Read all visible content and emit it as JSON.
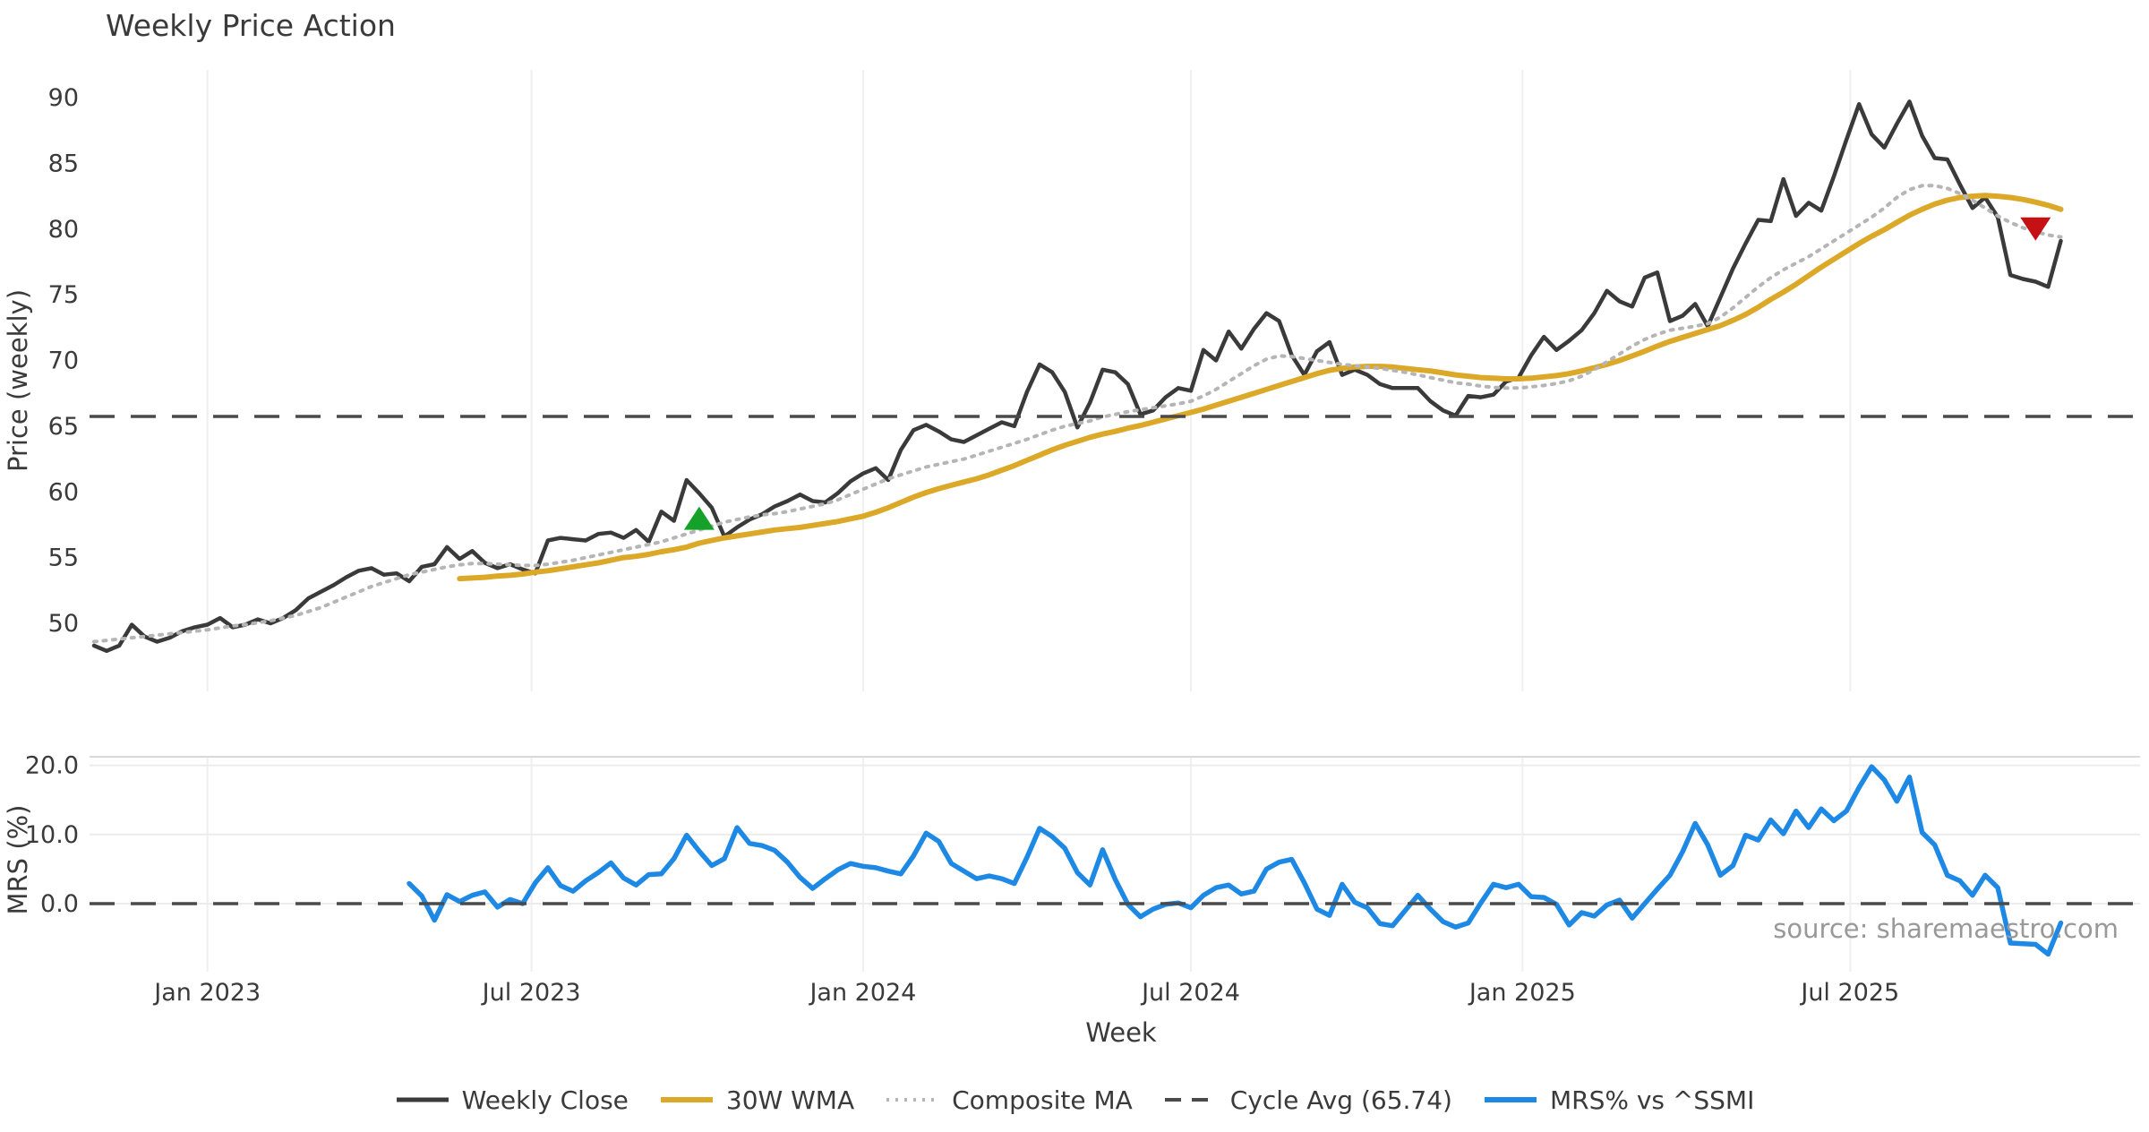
{
  "title": "Weekly Price Action",
  "source_text": "source: sharemaestro.com",
  "legend": {
    "items": [
      {
        "label": "Weekly Close",
        "color": "#3a3a3a",
        "style": "solid",
        "thickness": 5
      },
      {
        "label": "30W WMA",
        "color": "#dba828",
        "style": "solid",
        "thickness": 6
      },
      {
        "label": "Composite MA",
        "color": "#b5b5b5",
        "style": "dotted",
        "thickness": 4
      },
      {
        "label": "Cycle Avg (65.74)",
        "color": "#4a4a4a",
        "style": "dashed",
        "thickness": 4
      },
      {
        "label": "MRS% vs ^SSMI",
        "color": "#1e88e5",
        "style": "solid",
        "thickness": 6
      }
    ]
  },
  "chart_data": [
    {
      "type": "line",
      "panel": "price",
      "title": "Weekly Price Action",
      "xlabel": "Week",
      "ylabel": "Price (weekly)",
      "x_unit": "weekly index starting 2022-10-31",
      "n_points": 157,
      "ylim": [
        44.8,
        92.2
      ],
      "yticks": [
        50,
        55,
        60,
        65,
        70,
        75,
        80,
        85,
        90
      ],
      "x_ticks": [
        {
          "index": 9.0,
          "label": "Jan 2023"
        },
        {
          "index": 34.7,
          "label": "Jul 2023"
        },
        {
          "index": 61.0,
          "label": "Jan 2024"
        },
        {
          "index": 87.0,
          "label": "Jul 2024"
        },
        {
          "index": 113.3,
          "label": "Jan 2025"
        },
        {
          "index": 139.3,
          "label": "Jul 2025"
        }
      ],
      "grid": "vertical-only",
      "series": [
        {
          "name": "Weekly Close",
          "color": "#3a3a3a",
          "style": "solid",
          "width": 4.5,
          "start_index": 0,
          "values": [
            48.3,
            47.9,
            48.3,
            49.9,
            49.0,
            48.6,
            48.9,
            49.4,
            49.7,
            49.9,
            50.4,
            49.7,
            49.9,
            50.3,
            50.0,
            50.4,
            51.0,
            51.9,
            52.4,
            52.9,
            53.5,
            54.0,
            54.2,
            53.7,
            53.8,
            53.2,
            54.3,
            54.5,
            55.8,
            54.9,
            55.5,
            54.6,
            54.2,
            54.5,
            54.1,
            53.8,
            56.3,
            56.5,
            56.4,
            56.3,
            56.8,
            56.9,
            56.5,
            57.1,
            56.2,
            58.5,
            57.8,
            60.9,
            59.9,
            58.8,
            56.6,
            57.3,
            57.9,
            58.3,
            58.9,
            59.3,
            59.8,
            59.3,
            59.2,
            59.9,
            60.8,
            61.4,
            61.8,
            60.9,
            63.2,
            64.7,
            65.1,
            64.6,
            64.0,
            63.8,
            64.3,
            64.8,
            65.3,
            65.0,
            67.6,
            69.7,
            69.1,
            67.6,
            64.9,
            66.8,
            69.3,
            69.1,
            68.2,
            65.9,
            66.2,
            67.2,
            67.9,
            67.7,
            70.8,
            70.0,
            72.2,
            70.9,
            72.4,
            73.6,
            73.0,
            70.4,
            68.9,
            70.7,
            71.4,
            68.9,
            69.3,
            68.9,
            68.2,
            67.9,
            67.9,
            67.9,
            66.9,
            66.2,
            65.8,
            67.3,
            67.2,
            67.4,
            68.4,
            68.7,
            70.4,
            71.8,
            70.8,
            71.5,
            72.3,
            73.6,
            75.3,
            74.5,
            74.1,
            76.3,
            76.7,
            73.0,
            73.4,
            74.3,
            72.6,
            74.8,
            77.0,
            78.9,
            80.7,
            80.6,
            83.8,
            81.0,
            82.0,
            81.4,
            84.0,
            86.8,
            89.5,
            87.2,
            86.2,
            88.0,
            89.7,
            87.1,
            85.4,
            85.3,
            83.4,
            81.6,
            82.4,
            80.9,
            76.5,
            76.2,
            76.0,
            75.6,
            79.1
          ]
        },
        {
          "name": "30W WMA",
          "color": "#dba828",
          "style": "solid",
          "width": 6,
          "start_index": 29,
          "values": [
            53.4,
            53.45,
            53.5,
            53.6,
            53.65,
            53.75,
            53.9,
            54.0,
            54.15,
            54.3,
            54.45,
            54.6,
            54.8,
            55.0,
            55.1,
            55.25,
            55.45,
            55.6,
            55.8,
            56.1,
            56.3,
            56.5,
            56.65,
            56.8,
            56.95,
            57.1,
            57.2,
            57.3,
            57.45,
            57.6,
            57.75,
            57.95,
            58.15,
            58.45,
            58.8,
            59.2,
            59.6,
            59.95,
            60.25,
            60.5,
            60.75,
            61.0,
            61.3,
            61.65,
            62.0,
            62.4,
            62.8,
            63.2,
            63.55,
            63.85,
            64.15,
            64.4,
            64.6,
            64.85,
            65.05,
            65.3,
            65.55,
            65.8,
            66.05,
            66.3,
            66.6,
            66.9,
            67.2,
            67.5,
            67.8,
            68.1,
            68.4,
            68.7,
            69.0,
            69.25,
            69.4,
            69.5,
            69.55,
            69.55,
            69.5,
            69.4,
            69.3,
            69.2,
            69.05,
            68.9,
            68.8,
            68.7,
            68.65,
            68.6,
            68.6,
            68.65,
            68.75,
            68.85,
            69.0,
            69.2,
            69.45,
            69.7,
            70.0,
            70.35,
            70.7,
            71.1,
            71.45,
            71.75,
            72.05,
            72.35,
            72.65,
            73.05,
            73.5,
            74.05,
            74.65,
            75.2,
            75.8,
            76.45,
            77.1,
            77.7,
            78.3,
            78.9,
            79.45,
            79.95,
            80.5,
            81.05,
            81.5,
            81.9,
            82.2,
            82.4,
            82.5,
            82.55,
            82.5,
            82.4,
            82.25,
            82.05,
            81.8,
            81.5
          ]
        },
        {
          "name": "Composite MA",
          "color": "#b5b5b5",
          "style": "dotted",
          "width": 4,
          "start_index": 0,
          "values": [
            48.6,
            48.7,
            48.8,
            48.9,
            49.0,
            49.1,
            49.2,
            49.3,
            49.4,
            49.5,
            49.65,
            49.8,
            49.9,
            50.05,
            50.2,
            50.4,
            50.6,
            50.9,
            51.2,
            51.6,
            52.0,
            52.4,
            52.8,
            53.1,
            53.4,
            53.7,
            53.9,
            54.1,
            54.3,
            54.45,
            54.55,
            54.55,
            54.5,
            54.45,
            54.4,
            54.4,
            54.5,
            54.65,
            54.8,
            55.0,
            55.2,
            55.4,
            55.6,
            55.8,
            56.0,
            56.2,
            56.5,
            56.8,
            57.1,
            57.4,
            57.7,
            57.9,
            58.1,
            58.25,
            58.35,
            58.5,
            58.7,
            58.9,
            59.1,
            59.4,
            59.8,
            60.2,
            60.6,
            61.0,
            61.3,
            61.6,
            61.9,
            62.1,
            62.3,
            62.5,
            62.8,
            63.1,
            63.4,
            63.7,
            64.0,
            64.35,
            64.7,
            65.0,
            65.2,
            65.4,
            65.7,
            65.9,
            66.1,
            66.25,
            66.4,
            66.55,
            66.7,
            66.9,
            67.3,
            67.8,
            68.4,
            69.0,
            69.6,
            70.1,
            70.35,
            70.3,
            70.15,
            70.0,
            69.85,
            69.7,
            69.6,
            69.5,
            69.4,
            69.25,
            69.1,
            68.9,
            68.7,
            68.5,
            68.3,
            68.2,
            68.05,
            67.95,
            67.9,
            67.9,
            68.0,
            68.1,
            68.25,
            68.45,
            68.8,
            69.3,
            69.9,
            70.5,
            71.1,
            71.6,
            72.0,
            72.3,
            72.45,
            72.6,
            72.8,
            73.3,
            74.0,
            74.8,
            75.6,
            76.3,
            76.9,
            77.4,
            77.9,
            78.5,
            79.1,
            79.7,
            80.3,
            80.9,
            81.6,
            82.4,
            83.0,
            83.3,
            83.3,
            83.1,
            82.7,
            82.2,
            81.6,
            81.0,
            80.5,
            80.1,
            79.8,
            79.55,
            79.4
          ]
        },
        {
          "name": "Cycle Avg (65.74)",
          "type": "hline",
          "value": 65.74,
          "color": "#4a4a4a",
          "style": "dashed",
          "width": 3.5
        }
      ],
      "annotations": [
        {
          "type": "triangle-up",
          "name": "buy-signal",
          "week_index": 48,
          "value": 58.0,
          "color": "#16a22a"
        },
        {
          "type": "triangle-down",
          "name": "sell-signal",
          "week_index": 154,
          "value": 80.0,
          "color": "#c51113"
        }
      ]
    },
    {
      "type": "line",
      "panel": "mrs",
      "ylabel": "MRS (%)",
      "ylim": [
        -9.6,
        21.5
      ],
      "yticks": [
        0.0,
        10.0,
        20.0
      ],
      "ytick_labels": [
        "0.0",
        "10.0",
        "20.0"
      ],
      "grid": "horizontal-and-vertical",
      "series": [
        {
          "name": "MRS% vs ^SSMI",
          "color": "#1e88e5",
          "style": "solid",
          "width": 5.5,
          "start_index": 25,
          "values": [
            2.9,
            1.1,
            -2.4,
            1.3,
            0.3,
            1.2,
            1.7,
            -0.5,
            0.6,
            0.0,
            3.0,
            5.2,
            2.6,
            1.8,
            3.3,
            4.5,
            5.9,
            3.7,
            2.7,
            4.2,
            4.3,
            6.5,
            9.9,
            7.6,
            5.5,
            6.5,
            11.0,
            8.7,
            8.4,
            7.7,
            6.0,
            3.8,
            2.2,
            3.6,
            4.9,
            5.8,
            5.4,
            5.2,
            4.7,
            4.3,
            6.9,
            10.2,
            9.0,
            5.8,
            4.7,
            3.6,
            4.0,
            3.6,
            2.9,
            6.7,
            10.9,
            9.7,
            8.0,
            4.5,
            2.7,
            7.8,
            3.5,
            -0.1,
            -1.9,
            -0.8,
            -0.1,
            0.1,
            -0.6,
            1.2,
            2.3,
            2.7,
            1.4,
            1.8,
            5.0,
            6.0,
            6.4,
            3.0,
            -0.8,
            -1.7,
            2.8,
            0.2,
            -0.6,
            -2.9,
            -3.2,
            -1.0,
            1.2,
            -0.8,
            -2.6,
            -3.4,
            -2.8,
            0.1,
            2.8,
            2.3,
            2.8,
            1.0,
            0.9,
            -0.1,
            -3.1,
            -1.3,
            -1.8,
            -0.2,
            0.5,
            -2.1,
            0.0,
            2.1,
            4.1,
            7.5,
            11.6,
            8.5,
            4.1,
            5.5,
            9.9,
            9.2,
            12.1,
            10.1,
            13.4,
            11.0,
            13.7,
            12.0,
            13.4,
            16.8,
            19.8,
            17.9,
            14.8,
            18.3,
            10.3,
            8.5,
            4.1,
            3.3,
            1.2,
            4.1,
            2.3,
            -5.7,
            -5.8,
            -5.9,
            -7.3,
            -2.8
          ]
        },
        {
          "name": "zero-line",
          "type": "hline",
          "value": 0,
          "color": "#4a4a4a",
          "style": "dashed",
          "width": 3.5
        }
      ]
    }
  ]
}
